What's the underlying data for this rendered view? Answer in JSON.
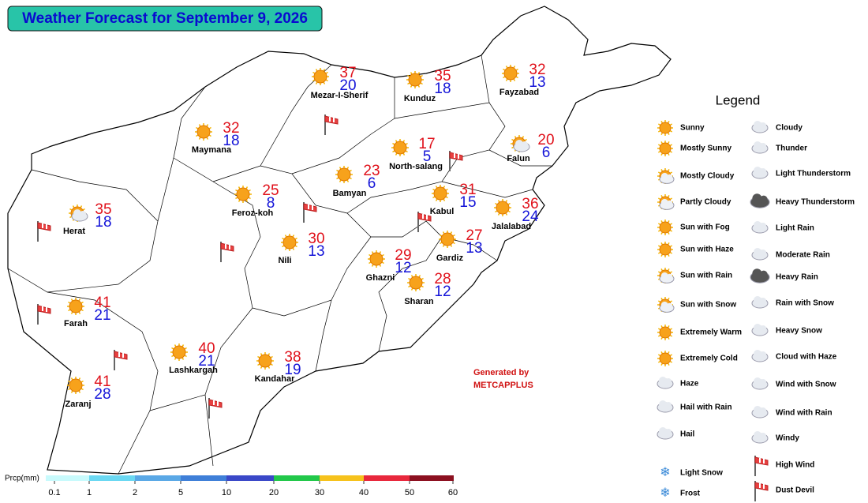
{
  "title": "Weather Forecast for September 9, 2026",
  "cities": [
    {
      "name": "Mezar-I-Sherif",
      "max": 37,
      "min": 20
    },
    {
      "name": "Kunduz",
      "max": 35,
      "min": 18
    },
    {
      "name": "Fayzabad",
      "max": 32,
      "min": 13
    },
    {
      "name": "Maymana",
      "max": 32,
      "min": 18
    },
    {
      "name": "North-salang",
      "max": 17,
      "min": 5
    },
    {
      "name": "Falun",
      "max": 20,
      "min": 6
    },
    {
      "name": "Bamyan",
      "max": 23,
      "min": 6
    },
    {
      "name": "Feroz-koh",
      "max": 25,
      "min": 8
    },
    {
      "name": "Herat",
      "max": 35,
      "min": 18
    },
    {
      "name": "Kabul",
      "max": 31,
      "min": 15
    },
    {
      "name": "Jalalabad",
      "max": 36,
      "min": 24
    },
    {
      "name": "Nili",
      "max": 30,
      "min": 13
    },
    {
      "name": "Gardiz",
      "max": 27,
      "min": 13
    },
    {
      "name": "Ghazni",
      "max": 29,
      "min": 12
    },
    {
      "name": "Sharan",
      "max": 28,
      "min": 12
    },
    {
      "name": "Farah",
      "max": 41,
      "min": 21
    },
    {
      "name": "Lashkargah",
      "max": 40,
      "min": 21
    },
    {
      "name": "Kandahar",
      "max": 38,
      "min": 19
    },
    {
      "name": "Zaranj",
      "max": 41,
      "min": 28
    }
  ],
  "legend": {
    "title": "Legend",
    "items": [
      "Sunny",
      "Mostly Sunny",
      "Mostly Cloudy",
      "Partly Cloudy",
      "Sun with Fog",
      "Sun with Haze",
      "Sun with Rain",
      "Sun with Snow",
      "Extremely Warm",
      "Extremely Cold",
      "Haze",
      "Hail with Rain",
      "Hail",
      "Light Snow",
      "Frost",
      "Cloudy",
      "Thunder",
      "Light Thunderstorm",
      "Heavy Thunderstorm",
      "Light Rain",
      "Moderate Rain",
      "Heavy Rain",
      "Rain with Snow",
      "Heavy Snow",
      "Cloud with Haze",
      "Wind with Snow",
      "Wind with Rain",
      "Windy",
      "High Wind",
      "Dust Devil"
    ]
  },
  "credit": [
    "Generated by",
    "METCAPPLUS"
  ],
  "precipitation": {
    "label": "Prcp(mm)",
    "ticks": [
      0.1,
      1,
      2,
      5,
      10,
      20,
      30,
      40,
      50,
      60
    ],
    "colors": [
      "#c8fafc",
      "#6ad8f2",
      "#5aa8e6",
      "#3f7fd8",
      "#3a48c8",
      "#22c84a",
      "#f6c21c",
      "#e8283c",
      "#8c1020"
    ]
  }
}
